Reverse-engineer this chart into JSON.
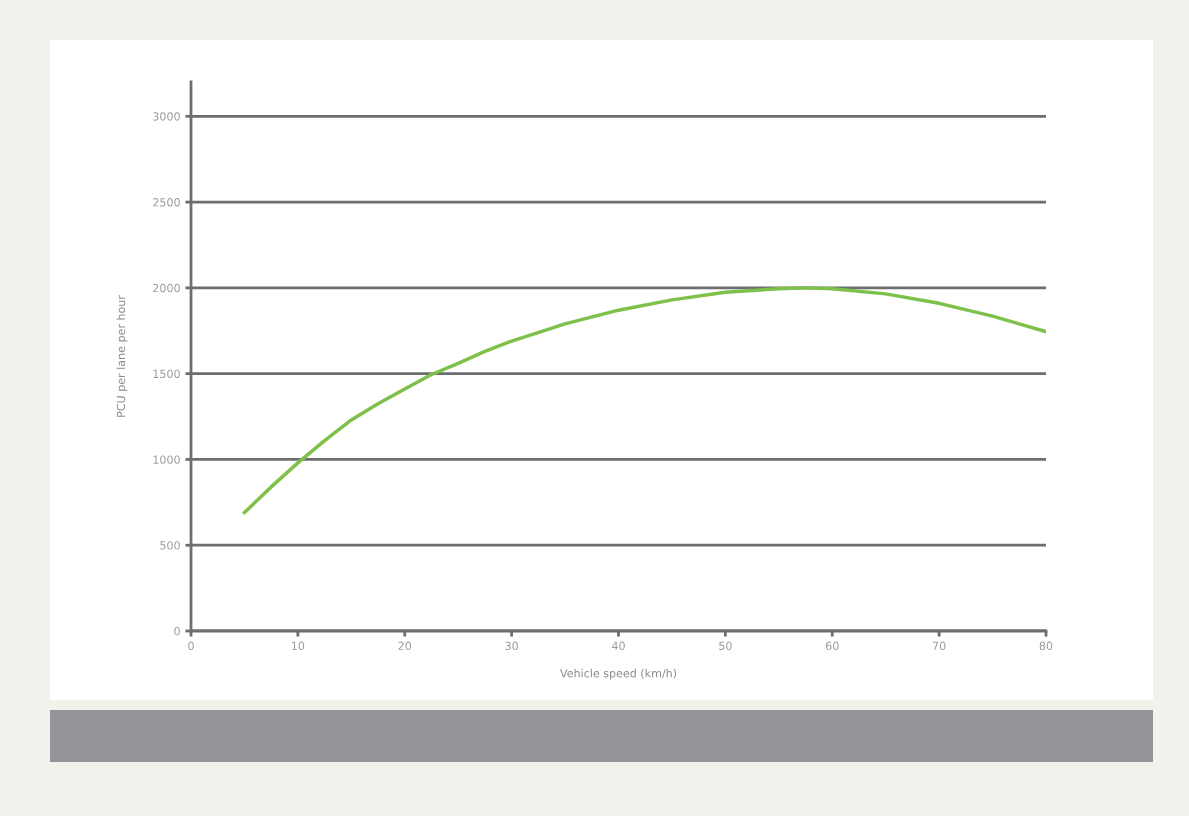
{
  "chart_data": {
    "type": "line",
    "xlabel": "Vehicle speed (km/h)",
    "ylabel": "PCU per lane per hour",
    "x": [
      5,
      7.5,
      10,
      12.5,
      15,
      17.5,
      20,
      22.5,
      25,
      27.5,
      30,
      35,
      40,
      45,
      50,
      55,
      57.5,
      60,
      65,
      70,
      75,
      80
    ],
    "series": [
      {
        "color": "#7dc04a",
        "values": [
          690,
          840,
          980,
          1110,
          1230,
          1325,
          1410,
          1495,
          1560,
          1630,
          1690,
          1790,
          1870,
          1930,
          1975,
          1995,
          2000,
          1995,
          1965,
          1910,
          1835,
          1745
        ]
      }
    ],
    "xlim": [
      0,
      80
    ],
    "xticks": [
      0,
      10,
      20,
      30,
      40,
      50,
      60,
      70,
      80
    ],
    "ylim": [
      0,
      3200
    ],
    "yticks": [
      0,
      500,
      1000,
      1500,
      2000,
      2500,
      3000
    ],
    "grid": "y",
    "marker": "none",
    "line_style": "solid"
  }
}
